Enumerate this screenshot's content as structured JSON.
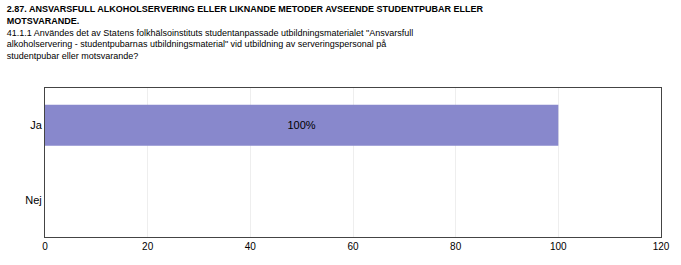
{
  "chart_data": {
    "type": "bar",
    "orientation": "horizontal",
    "title": "2.87. ANSVARSFULL ALKOHOLSERVERING ELLER LIKNANDE METODER AVSEENDE STUDENTPUBAR ELLER\nMOTSVARANDE.",
    "subtitle": "41.1.1 Användes det av Statens folkhälsoinstituts studentanpassade utbildningsmaterialet \"Ansvarsfull\nalkoholservering - studentpubarnas utbildningsmaterial\" vid utbildning av serveringspersonal på\nstudentpubar eller motsvarande?",
    "categories": [
      "Nej",
      "Ja"
    ],
    "values": [
      0,
      100
    ],
    "value_labels": [
      null,
      "100%"
    ],
    "data_labels": true,
    "color": "#8888cc",
    "xlim": [
      0,
      120
    ],
    "xticks": [
      0,
      20,
      40,
      60,
      80,
      100,
      120
    ],
    "grid": true
  }
}
